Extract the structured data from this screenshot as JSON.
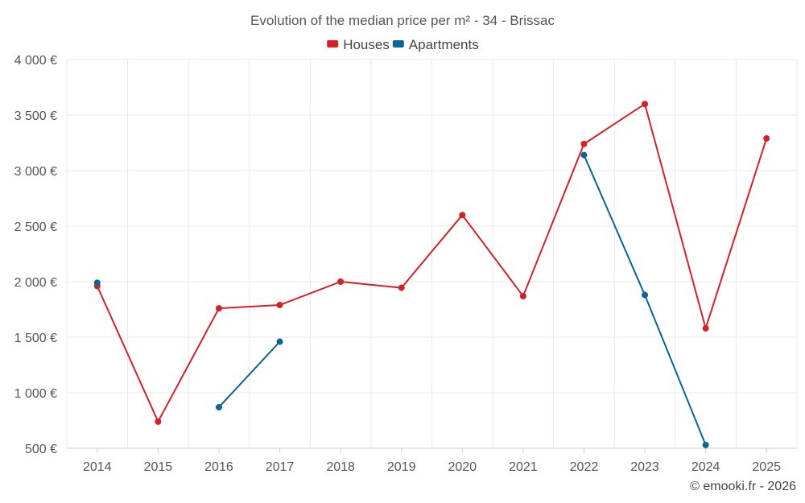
{
  "chart_data": {
    "type": "line",
    "title": "Evolution of the median price per m² - 34 - Brissac",
    "categories": [
      "2014",
      "2015",
      "2016",
      "2017",
      "2018",
      "2019",
      "2020",
      "2021",
      "2022",
      "2023",
      "2024",
      "2025"
    ],
    "series": [
      {
        "name": "Houses",
        "color": "#d32128",
        "values": [
          1960,
          740,
          1760,
          1790,
          2000,
          1945,
          2600,
          1870,
          3240,
          3600,
          1580,
          3290
        ]
      },
      {
        "name": "Apartments",
        "color": "#0b6496",
        "values": [
          1990,
          null,
          870,
          1460,
          null,
          null,
          null,
          null,
          3140,
          1880,
          530,
          null
        ]
      }
    ],
    "ylim": [
      500,
      4000
    ],
    "yticks": [
      500,
      1000,
      1500,
      2000,
      2500,
      3000,
      3500,
      4000
    ],
    "ytick_labels": [
      "500 €",
      "1 000 €",
      "1 500 €",
      "2 000 €",
      "2 500 €",
      "3 000 €",
      "3 500 €",
      "4 000 €"
    ],
    "xlabel": "",
    "ylabel": "",
    "grid": true,
    "legend_position": "top-center"
  },
  "credit": "© emooki.fr - 2026"
}
